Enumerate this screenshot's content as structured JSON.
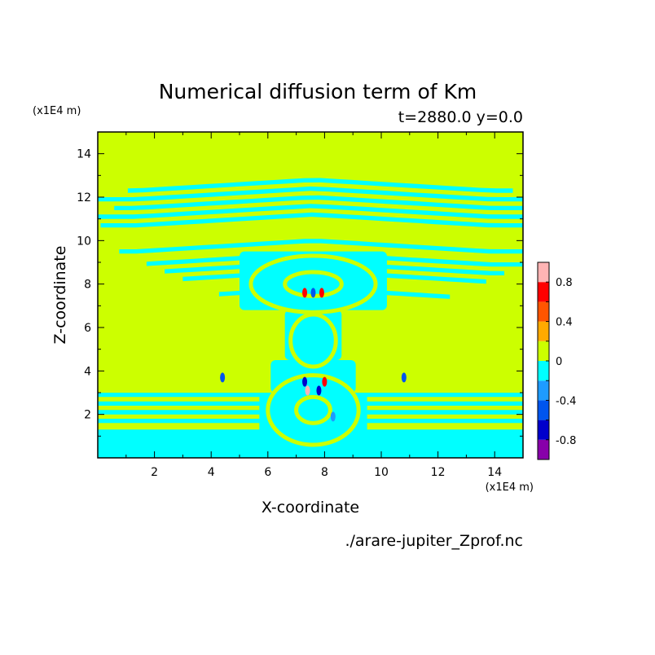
{
  "chart_data": {
    "type": "heatmap",
    "title": "Numerical diffusion term of Km",
    "subtitle": "t=2880.0 y=0.0",
    "xlabel": "X-coordinate",
    "ylabel": "Z-coordinate",
    "x_unit": "(x1E4 m)",
    "y_unit": "(x1E4 m)",
    "source_file": "./arare-jupiter_Zprof.nc",
    "xlim": [
      0,
      15
    ],
    "ylim": [
      0,
      15
    ],
    "x_ticks": [
      2,
      4,
      6,
      8,
      10,
      12,
      14
    ],
    "y_ticks": [
      2,
      4,
      6,
      8,
      10,
      12,
      14
    ],
    "x_tick_labels": [
      "2",
      "4",
      "6",
      "8",
      "10",
      "12",
      "14"
    ],
    "y_tick_labels": [
      "2",
      "4",
      "6",
      "8",
      "10",
      "12",
      "14"
    ],
    "colorbar": {
      "levels": [
        -1.0,
        -0.8,
        -0.6,
        -0.4,
        -0.2,
        0.0,
        0.2,
        0.4,
        0.6,
        0.8,
        1.0
      ],
      "colors": [
        "#8800aa",
        "#0000cc",
        "#0055ee",
        "#1e9bff",
        "#00ffff",
        "#ccff00",
        "#ffaa00",
        "#ff5500",
        "#ff0000",
        "#ffb4b4"
      ],
      "tick_values": [
        0.8,
        0.4,
        0,
        -0.4,
        -0.8
      ],
      "tick_labels": [
        "0.8",
        "0.4",
        "0",
        "-0.4",
        "-0.8"
      ]
    },
    "field": {
      "bands_cyan": [
        [
          0.0,
          1.3
        ],
        [
          1.6,
          1.8
        ],
        [
          2.0,
          2.2
        ],
        [
          2.4,
          2.6
        ],
        [
          2.8,
          3.0
        ],
        [
          7.2,
          7.4
        ],
        [
          8.0,
          8.2
        ],
        [
          8.4,
          8.6
        ],
        [
          8.8,
          9.0
        ],
        [
          9.4,
          9.6
        ],
        [
          10.6,
          10.8
        ],
        [
          11.0,
          11.2
        ],
        [
          11.4,
          11.6
        ],
        [
          11.8,
          12.0
        ],
        [
          12.2,
          12.4
        ]
      ],
      "core_center_x": 7.6,
      "features": [
        {
          "x": 4.4,
          "z": 3.7,
          "v": -0.5
        },
        {
          "x": 10.8,
          "z": 3.7,
          "v": -0.5
        },
        {
          "x": 7.4,
          "z": 3.1,
          "v": 0.8
        },
        {
          "x": 7.8,
          "z": 3.1,
          "v": -0.8
        },
        {
          "x": 7.3,
          "z": 3.5,
          "v": -0.8
        },
        {
          "x": 8.0,
          "z": 3.5,
          "v": 0.6
        },
        {
          "x": 7.3,
          "z": 7.6,
          "v": 0.6
        },
        {
          "x": 7.6,
          "z": 7.6,
          "v": -0.6
        },
        {
          "x": 7.9,
          "z": 7.6,
          "v": 0.6
        },
        {
          "x": 8.3,
          "z": 1.9,
          "v": -0.4
        }
      ]
    }
  }
}
